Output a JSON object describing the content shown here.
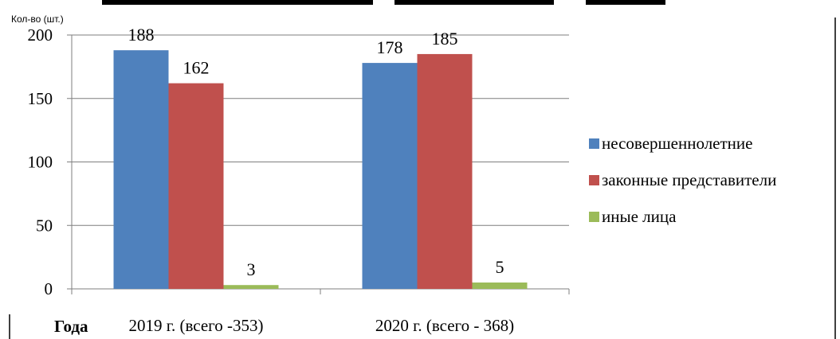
{
  "chart_data": {
    "type": "bar",
    "ylabel": "Кол-во (шт.)",
    "xlabel": "Года",
    "ylim": [
      0,
      200
    ],
    "yticks": [
      0,
      50,
      100,
      150,
      200
    ],
    "grid": true,
    "legend_position": "right",
    "categories": [
      "2019 г. (всего -353)",
      "2020 г. (всего - 368)"
    ],
    "series": [
      {
        "name": "несовершеннолетние",
        "values": [
          188,
          178
        ],
        "color": "#4F81BD"
      },
      {
        "name": "законные представители",
        "values": [
          162,
          185
        ],
        "color": "#C0504D"
      },
      {
        "name": "иные лица",
        "values": [
          3,
          5
        ],
        "color": "#9BBB59"
      }
    ]
  }
}
